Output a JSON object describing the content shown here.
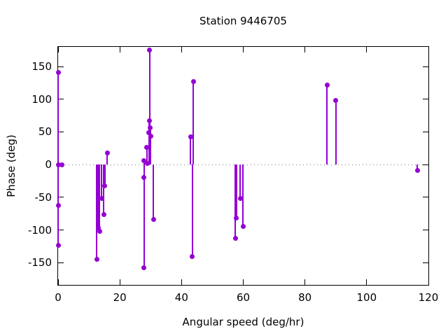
{
  "title": "Station 9446705",
  "chart_data": {
    "type": "stem",
    "title": "Station 9446705",
    "xlabel": "Angular speed (deg/hr)",
    "ylabel": "Phase (deg)",
    "xlim": [
      0,
      120
    ],
    "ylim": [
      -184,
      180
    ],
    "xticks": [
      0,
      20,
      40,
      60,
      80,
      100,
      120
    ],
    "yticks": [
      -150,
      -100,
      -50,
      0,
      50,
      100,
      150
    ],
    "grid": false,
    "zero_line_dotted": true,
    "legend": "none",
    "series_color": "#9400d3",
    "marker": "filled-circle",
    "points": [
      [
        0.1,
        141
      ],
      [
        0.2,
        0
      ],
      [
        1.3,
        0
      ],
      [
        0.1,
        -62
      ],
      [
        0.1,
        -124
      ],
      [
        12.5,
        -145
      ],
      [
        13.0,
        -97
      ],
      [
        13.4,
        -102
      ],
      [
        14.1,
        -52
      ],
      [
        14.8,
        -76
      ],
      [
        15.1,
        -32
      ],
      [
        15.9,
        18
      ],
      [
        27.8,
        -20
      ],
      [
        27.9,
        6
      ],
      [
        28.9,
        2
      ],
      [
        28.7,
        26
      ],
      [
        29.4,
        49
      ],
      [
        29.6,
        67
      ],
      [
        29.9,
        56
      ],
      [
        30.0,
        44
      ],
      [
        29.7,
        175
      ],
      [
        30.9,
        -84
      ],
      [
        27.9,
        -158
      ],
      [
        42.9,
        42
      ],
      [
        43.5,
        -141
      ],
      [
        43.8,
        127
      ],
      [
        57.4,
        -113
      ],
      [
        57.8,
        -82
      ],
      [
        59.0,
        -52
      ],
      [
        59.9,
        -95
      ],
      [
        87.2,
        122
      ],
      [
        90.0,
        98
      ],
      [
        116.4,
        -9
      ]
    ]
  }
}
